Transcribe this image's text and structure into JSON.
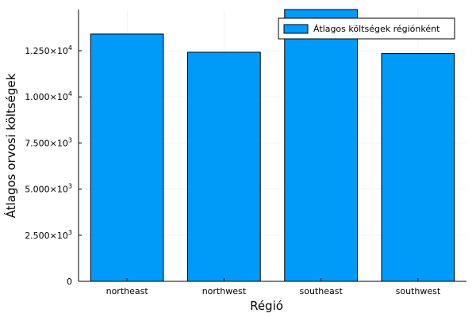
{
  "chart_data": {
    "type": "bar",
    "title": "",
    "xlabel": "Régió",
    "ylabel": "Átlagos orvosi költségek",
    "categories": [
      "northeast",
      "northwest",
      "southeast",
      "southwest"
    ],
    "series": [
      {
        "name": "Átlagos költségek régiónként",
        "values": [
          13406,
          12418,
          14735,
          12347
        ],
        "color": "#009AF9"
      }
    ],
    "ylim": [
      0,
      14735
    ],
    "yticks": [
      {
        "value": 0,
        "mantissa": "0",
        "exponent": ""
      },
      {
        "value": 2500,
        "mantissa": "2.500×10",
        "exponent": "3"
      },
      {
        "value": 5000,
        "mantissa": "5.000×10",
        "exponent": "3"
      },
      {
        "value": 7500,
        "mantissa": "7.500×10",
        "exponent": "3"
      },
      {
        "value": 10000,
        "mantissa": "1.000×10",
        "exponent": "4"
      },
      {
        "value": 12500,
        "mantissa": "1.250×10",
        "exponent": "4"
      }
    ],
    "grid": true,
    "legend_position": "top-right"
  }
}
